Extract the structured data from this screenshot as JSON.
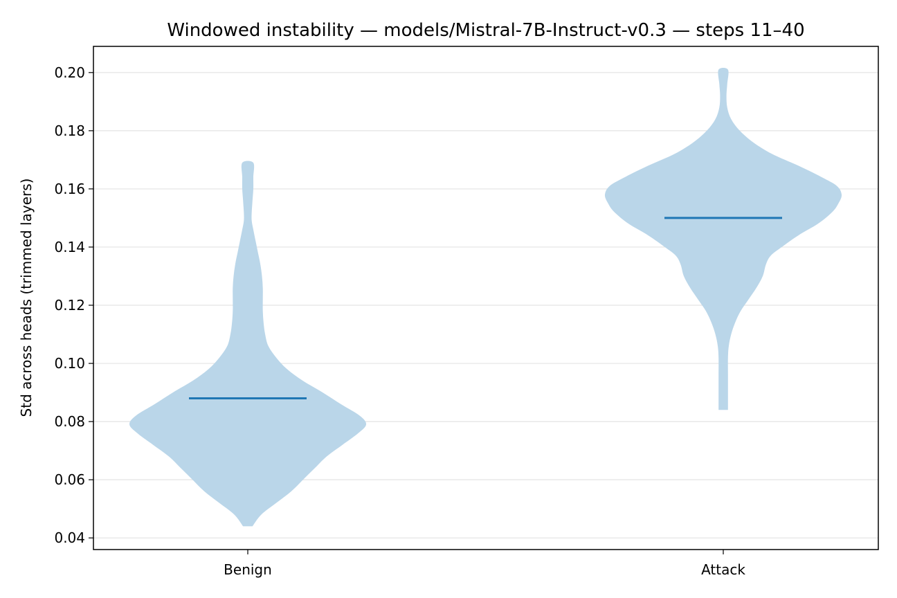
{
  "chart_data": {
    "type": "violin",
    "title": "Windowed instability — models/Mistral-7B-Instruct-v0.3 — steps 11–40",
    "xlabel": "",
    "ylabel": "Std across heads (trimmed layers)",
    "categories": [
      "Benign",
      "Attack"
    ],
    "ylim": [
      0.036,
      0.209
    ],
    "yticks": [
      0.04,
      0.06,
      0.08,
      0.1,
      0.12,
      0.14,
      0.16,
      0.18,
      0.2
    ],
    "ytick_labels": [
      "0.04",
      "0.06",
      "0.08",
      "0.10",
      "0.12",
      "0.14",
      "0.16",
      "0.18",
      "0.20"
    ],
    "grid": "y",
    "colors": {
      "violin": "#bad6e9",
      "median": "#1f77b4",
      "grid": "#e3e3e3",
      "axis": "#000000"
    },
    "series": [
      {
        "category": "Benign",
        "min": 0.044,
        "max": 0.169,
        "median": 0.088,
        "density": [
          [
            0.044,
            0.06
          ],
          [
            0.048,
            0.17
          ],
          [
            0.052,
            0.36
          ],
          [
            0.056,
            0.55
          ],
          [
            0.06,
            0.7
          ],
          [
            0.064,
            0.85
          ],
          [
            0.068,
            1.0
          ],
          [
            0.072,
            1.2
          ],
          [
            0.076,
            1.4
          ],
          [
            0.079,
            1.5
          ],
          [
            0.082,
            1.42
          ],
          [
            0.086,
            1.18
          ],
          [
            0.09,
            0.95
          ],
          [
            0.094,
            0.7
          ],
          [
            0.098,
            0.5
          ],
          [
            0.102,
            0.36
          ],
          [
            0.106,
            0.26
          ],
          [
            0.11,
            0.22
          ],
          [
            0.114,
            0.2
          ],
          [
            0.118,
            0.19
          ],
          [
            0.122,
            0.19
          ],
          [
            0.126,
            0.19
          ],
          [
            0.13,
            0.18
          ],
          [
            0.134,
            0.16
          ],
          [
            0.138,
            0.13
          ],
          [
            0.142,
            0.1
          ],
          [
            0.146,
            0.07
          ],
          [
            0.149,
            0.05
          ],
          [
            0.152,
            0.05
          ],
          [
            0.156,
            0.06
          ],
          [
            0.16,
            0.07
          ],
          [
            0.164,
            0.07
          ],
          [
            0.169,
            0.07
          ]
        ]
      },
      {
        "category": "Attack",
        "min": 0.084,
        "max": 0.201,
        "median": 0.15,
        "density": [
          [
            0.084,
            0.06
          ],
          [
            0.09,
            0.06
          ],
          [
            0.096,
            0.06
          ],
          [
            0.102,
            0.06
          ],
          [
            0.106,
            0.07
          ],
          [
            0.11,
            0.1
          ],
          [
            0.114,
            0.15
          ],
          [
            0.118,
            0.22
          ],
          [
            0.122,
            0.32
          ],
          [
            0.126,
            0.42
          ],
          [
            0.13,
            0.5
          ],
          [
            0.134,
            0.54
          ],
          [
            0.137,
            0.6
          ],
          [
            0.14,
            0.74
          ],
          [
            0.144,
            0.95
          ],
          [
            0.148,
            1.2
          ],
          [
            0.152,
            1.38
          ],
          [
            0.155,
            1.46
          ],
          [
            0.158,
            1.5
          ],
          [
            0.161,
            1.44
          ],
          [
            0.164,
            1.25
          ],
          [
            0.168,
            0.95
          ],
          [
            0.172,
            0.62
          ],
          [
            0.176,
            0.38
          ],
          [
            0.18,
            0.21
          ],
          [
            0.184,
            0.1
          ],
          [
            0.188,
            0.05
          ],
          [
            0.192,
            0.04
          ],
          [
            0.196,
            0.05
          ],
          [
            0.201,
            0.06
          ]
        ]
      }
    ]
  }
}
